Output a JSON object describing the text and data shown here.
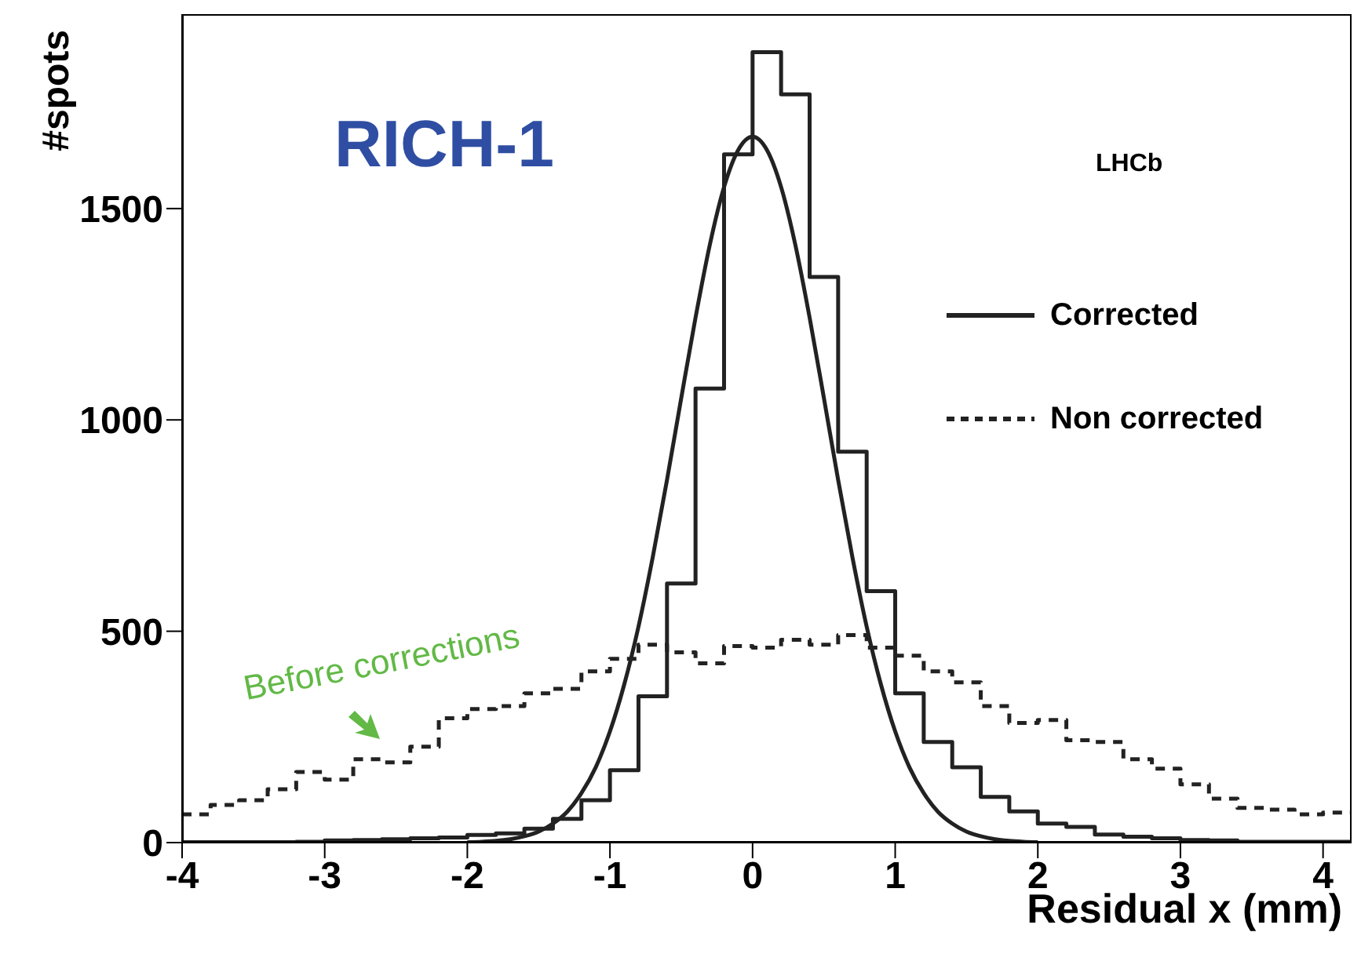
{
  "chart_data": {
    "type": "histogram",
    "title": "RICH-1",
    "xlabel": "Residual x (mm)",
    "ylabel": "#spots",
    "annotations": [
      "LHCb",
      "Before corrections"
    ],
    "bins": [
      -4,
      -3.8,
      -3.6,
      -3.4,
      -3.2,
      -3,
      -2.8,
      -2.6,
      -2.4,
      -2.2,
      -2,
      -1.8,
      -1.6,
      -1.4,
      -1.2,
      -1,
      -0.8,
      -0.6,
      -0.4,
      -0.2,
      0,
      0.2,
      0.4,
      0.6,
      0.8,
      1,
      1.2,
      1.4,
      1.6,
      1.8,
      2,
      2.2,
      2.4,
      2.6,
      2.8,
      3,
      3.2,
      3.4,
      3.6,
      3.8,
      4,
      4.2
    ],
    "series": [
      {
        "name": "Corrected",
        "color": "#222222",
        "line_style": "solid",
        "values": [
          1,
          1,
          1,
          1,
          2,
          5,
          6,
          8,
          10,
          12,
          18,
          22,
          33,
          56,
          100,
          171,
          346,
          613,
          1074,
          1628,
          1870,
          1770,
          1338,
          925,
          595,
          353,
          238,
          178,
          108,
          74,
          45,
          37,
          19,
          14,
          10,
          6,
          5,
          2,
          2,
          2,
          2
        ]
      },
      {
        "name": "Non corrected",
        "color": "#222222",
        "line_style": "dashed",
        "values": [
          67,
          89,
          100,
          126,
          167,
          149,
          197,
          190,
          227,
          294,
          316,
          323,
          353,
          364,
          405,
          435,
          468,
          450,
          424,
          465,
          461,
          480,
          468,
          491,
          461,
          442,
          405,
          379,
          323,
          283,
          290,
          242,
          238,
          197,
          175,
          138,
          104,
          82,
          78,
          67,
          71
        ]
      },
      {
        "type": "line",
        "color": "#222222",
        "line_style": "solid",
        "x": [
          -2,
          -1.9,
          -1.8,
          -1.7,
          -1.6,
          -1.5,
          -1.4,
          -1.3,
          -1.2,
          -1.1,
          -1,
          -0.9,
          -0.8,
          -0.7,
          -0.6,
          -0.5,
          -0.4,
          -0.3,
          -0.2,
          -0.1,
          0,
          0.1,
          0.2,
          0.3,
          0.4,
          0.5,
          0.6,
          0.7,
          0.8,
          0.9,
          1,
          1.1,
          1.2,
          1.3,
          1.4,
          1.5,
          1.6,
          1.7,
          1.8,
          1.9,
          2
        ],
        "values": [
          1,
          2,
          4,
          8,
          15,
          26,
          45,
          73,
          117,
          178,
          263,
          374,
          511,
          675,
          858,
          1052,
          1242,
          1414,
          1551,
          1639,
          1670,
          1639,
          1551,
          1414,
          1242,
          1052,
          858,
          675,
          511,
          374,
          263,
          178,
          117,
          73,
          45,
          26,
          15,
          8,
          4,
          2,
          1
        ]
      }
    ],
    "xlim": [
      -4,
      4.2
    ],
    "xticks": [
      -4,
      -3,
      -2,
      -1,
      0,
      1,
      2,
      3,
      4
    ],
    "ylim": [
      0,
      1960
    ],
    "yticks": [
      0,
      500,
      1000,
      1500
    ],
    "legend": "right",
    "marker": "none"
  }
}
